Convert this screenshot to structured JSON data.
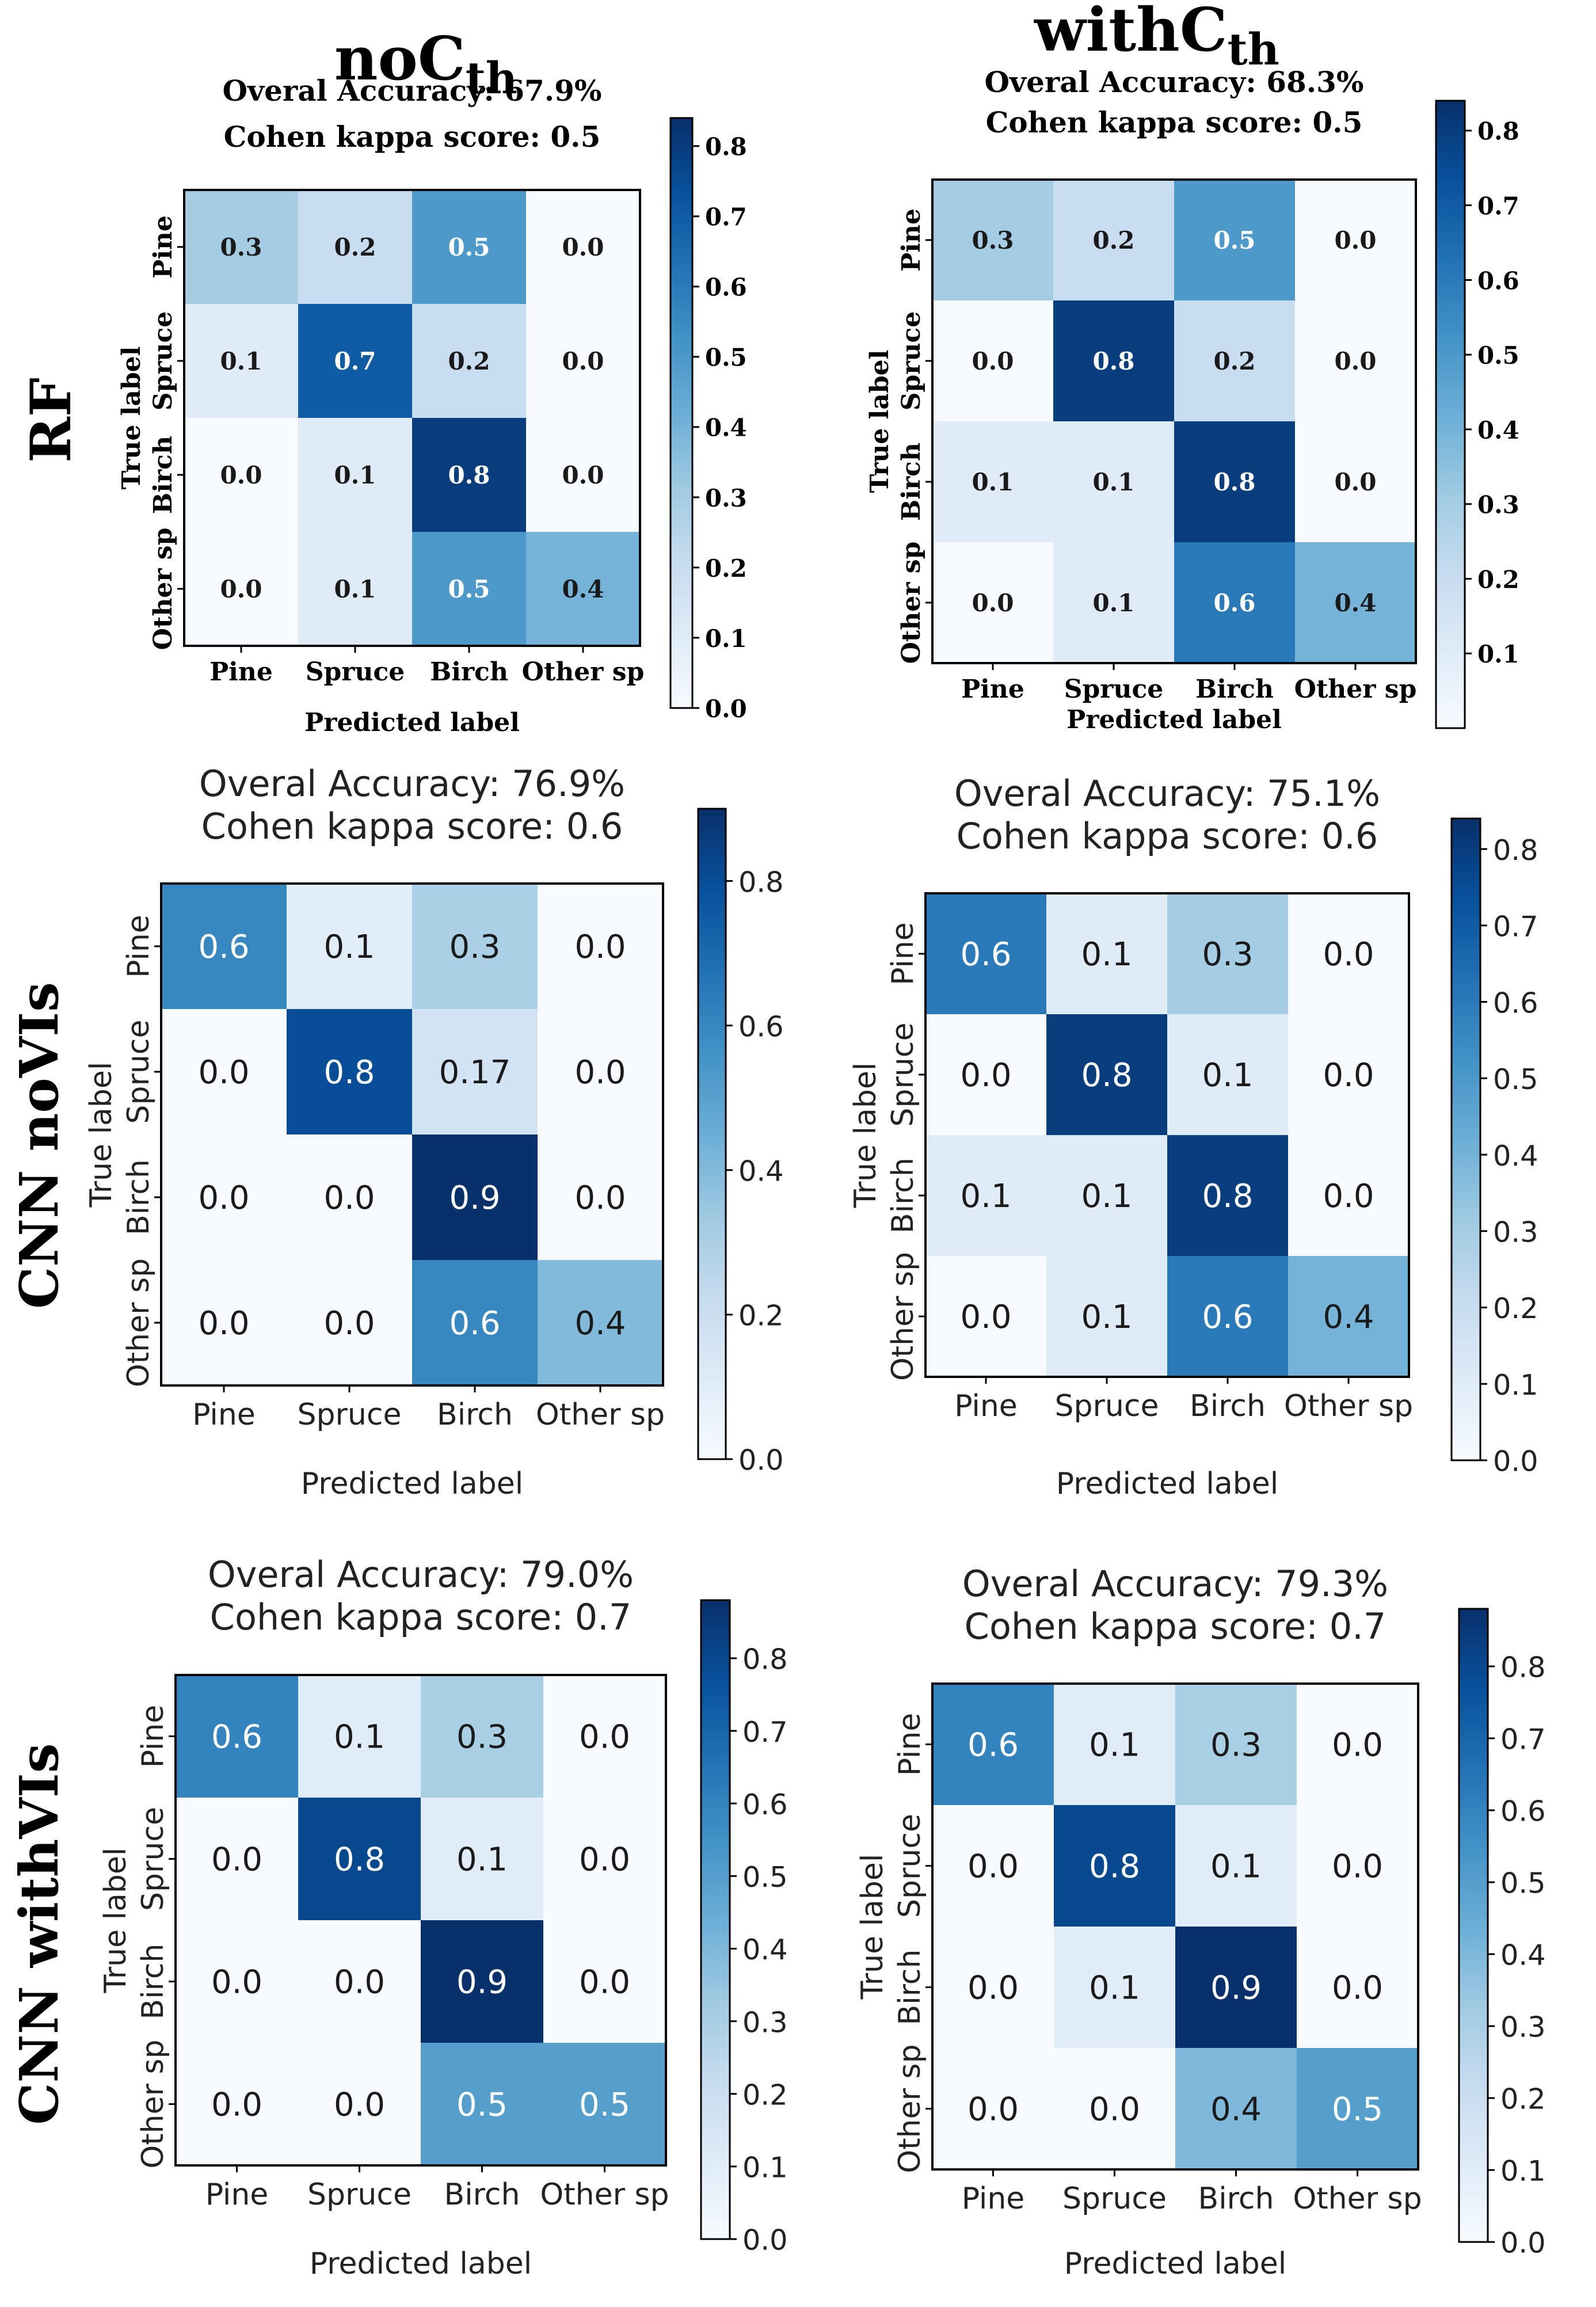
{
  "column_headers": [
    {
      "base": "noC",
      "sub": "th"
    },
    {
      "base": "withC",
      "sub": "th"
    }
  ],
  "row_headers": [
    "RF",
    "CNN noVIs",
    "CNN withVIs"
  ],
  "chart_data": [
    {
      "type": "heatmap",
      "row": "RF",
      "column": "noCth",
      "title_lines": [
        "Overal Accuracy: 67.9%",
        "Cohen kappa score: 0.5"
      ],
      "xlabel": "Predicted label",
      "ylabel": "True label",
      "x_categories": [
        "Pine",
        "Spruce",
        "Birch",
        "Other sp"
      ],
      "y_categories": [
        "Pine",
        "Spruce",
        "Birch",
        "Other sp"
      ],
      "values": [
        [
          0.3,
          0.2,
          0.5,
          0.0
        ],
        [
          0.1,
          0.7,
          0.2,
          0.0
        ],
        [
          0.0,
          0.1,
          0.8,
          0.0
        ],
        [
          0.0,
          0.1,
          0.5,
          0.4
        ]
      ],
      "cell_labels": [
        [
          "0.3",
          "0.2",
          "0.5",
          "0.0"
        ],
        [
          "0.1",
          "0.7",
          "0.2",
          "0.0"
        ],
        [
          "0.0",
          "0.1",
          "0.8",
          "0.0"
        ],
        [
          "0.0",
          "0.1",
          "0.5",
          "0.4"
        ]
      ],
      "colorbar": {
        "range": [
          0.0,
          0.84
        ],
        "ticks": [
          "0.0",
          "0.1",
          "0.2",
          "0.3",
          "0.4",
          "0.5",
          "0.6",
          "0.7",
          "0.8"
        ]
      },
      "colormap": "Blues"
    },
    {
      "type": "heatmap",
      "row": "RF",
      "column": "withCth",
      "title_lines": [
        "Overal Accuracy: 68.3%",
        "Cohen kappa score: 0.5"
      ],
      "xlabel": "Predicted label",
      "ylabel": "True label",
      "x_categories": [
        "Pine",
        "Spruce",
        "Birch",
        "Other sp"
      ],
      "y_categories": [
        "Pine",
        "Spruce",
        "Birch",
        "Other sp"
      ],
      "values": [
        [
          0.3,
          0.2,
          0.5,
          0.0
        ],
        [
          0.0,
          0.8,
          0.2,
          0.0
        ],
        [
          0.1,
          0.1,
          0.8,
          0.0
        ],
        [
          0.0,
          0.1,
          0.6,
          0.4
        ]
      ],
      "cell_labels": [
        [
          "0.3",
          "0.2",
          "0.5",
          "0.0"
        ],
        [
          "0.0",
          "0.8",
          "0.2",
          "0.0"
        ],
        [
          "0.1",
          "0.1",
          "0.8",
          "0.0"
        ],
        [
          "0.0",
          "0.1",
          "0.6",
          "0.4"
        ]
      ],
      "colorbar": {
        "range": [
          0.0,
          0.84
        ],
        "ticks": [
          "0.1",
          "0.2",
          "0.3",
          "0.4",
          "0.5",
          "0.6",
          "0.7",
          "0.8"
        ]
      },
      "colormap": "Blues"
    },
    {
      "type": "heatmap",
      "row": "CNN noVIs",
      "column": "noCth",
      "title_lines": [
        "Overal Accuracy: 76.9%",
        "Cohen kappa score: 0.6"
      ],
      "xlabel": "Predicted label",
      "ylabel": "True label",
      "x_categories": [
        "Pine",
        "Spruce",
        "Birch",
        "Other sp"
      ],
      "y_categories": [
        "Pine",
        "Spruce",
        "Birch",
        "Other sp"
      ],
      "values": [
        [
          0.6,
          0.1,
          0.3,
          0.0
        ],
        [
          0.0,
          0.8,
          0.17,
          0.0
        ],
        [
          0.0,
          0.0,
          0.9,
          0.0
        ],
        [
          0.0,
          0.0,
          0.6,
          0.4
        ]
      ],
      "cell_labels": [
        [
          "0.6",
          "0.1",
          "0.3",
          "0.0"
        ],
        [
          "0.0",
          "0.8",
          "0.17",
          "0.0"
        ],
        [
          "0.0",
          "0.0",
          "0.9",
          "0.0"
        ],
        [
          "0.0",
          "0.0",
          "0.6",
          "0.4"
        ]
      ],
      "colorbar": {
        "range": [
          0.0,
          0.9
        ],
        "ticks": [
          "0.0",
          "0.2",
          "0.4",
          "0.6",
          "0.8"
        ]
      },
      "colormap": "Blues"
    },
    {
      "type": "heatmap",
      "row": "CNN noVIs",
      "column": "withCth",
      "title_lines": [
        "Overal Accuracy: 75.1%",
        "Cohen kappa score: 0.6"
      ],
      "xlabel": "Predicted label",
      "ylabel": "True label",
      "x_categories": [
        "Pine",
        "Spruce",
        "Birch",
        "Other sp"
      ],
      "y_categories": [
        "Pine",
        "Spruce",
        "Birch",
        "Other sp"
      ],
      "values": [
        [
          0.6,
          0.1,
          0.3,
          0.0
        ],
        [
          0.0,
          0.8,
          0.1,
          0.0
        ],
        [
          0.1,
          0.1,
          0.8,
          0.0
        ],
        [
          0.0,
          0.1,
          0.6,
          0.4
        ]
      ],
      "cell_labels": [
        [
          "0.6",
          "0.1",
          "0.3",
          "0.0"
        ],
        [
          "0.0",
          "0.8",
          "0.1",
          "0.0"
        ],
        [
          "0.1",
          "0.1",
          "0.8",
          "0.0"
        ],
        [
          "0.0",
          "0.1",
          "0.6",
          "0.4"
        ]
      ],
      "colorbar": {
        "range": [
          0.0,
          0.84
        ],
        "ticks": [
          "0.0",
          "0.1",
          "0.2",
          "0.3",
          "0.4",
          "0.5",
          "0.6",
          "0.7",
          "0.8"
        ]
      },
      "colormap": "Blues"
    },
    {
      "type": "heatmap",
      "row": "CNN withVIs",
      "column": "noCth",
      "title_lines": [
        "Overal Accuracy: 79.0%",
        "Cohen kappa score: 0.7"
      ],
      "xlabel": "Predicted label",
      "ylabel": "True label",
      "x_categories": [
        "Pine",
        "Spruce",
        "Birch",
        "Other sp"
      ],
      "y_categories": [
        "Pine",
        "Spruce",
        "Birch",
        "Other sp"
      ],
      "values": [
        [
          0.6,
          0.1,
          0.3,
          0.0
        ],
        [
          0.0,
          0.8,
          0.1,
          0.0
        ],
        [
          0.0,
          0.0,
          0.9,
          0.0
        ],
        [
          0.0,
          0.0,
          0.5,
          0.5
        ]
      ],
      "cell_labels": [
        [
          "0.6",
          "0.1",
          "0.3",
          "0.0"
        ],
        [
          "0.0",
          "0.8",
          "0.1",
          "0.0"
        ],
        [
          "0.0",
          "0.0",
          "0.9",
          "0.0"
        ],
        [
          "0.0",
          "0.0",
          "0.5",
          "0.5"
        ]
      ],
      "colorbar": {
        "range": [
          0.0,
          0.88
        ],
        "ticks": [
          "0.0",
          "0.1",
          "0.2",
          "0.3",
          "0.4",
          "0.5",
          "0.6",
          "0.7",
          "0.8"
        ]
      },
      "colormap": "Blues"
    },
    {
      "type": "heatmap",
      "row": "CNN withVIs",
      "column": "withCth",
      "title_lines": [
        "Overal Accuracy: 79.3%",
        "Cohen kappa score: 0.7"
      ],
      "xlabel": "Predicted label",
      "ylabel": "True label",
      "x_categories": [
        "Pine",
        "Spruce",
        "Birch",
        "Other sp"
      ],
      "y_categories": [
        "Pine",
        "Spruce",
        "Birch",
        "Other sp"
      ],
      "values": [
        [
          0.6,
          0.1,
          0.3,
          0.0
        ],
        [
          0.0,
          0.8,
          0.1,
          0.0
        ],
        [
          0.0,
          0.1,
          0.9,
          0.0
        ],
        [
          0.0,
          0.0,
          0.4,
          0.5
        ]
      ],
      "cell_labels": [
        [
          "0.6",
          "0.1",
          "0.3",
          "0.0"
        ],
        [
          "0.0",
          "0.8",
          "0.1",
          "0.0"
        ],
        [
          "0.0",
          "0.1",
          "0.9",
          "0.0"
        ],
        [
          "0.0",
          "0.0",
          "0.4",
          "0.5"
        ]
      ],
      "colorbar": {
        "range": [
          0.0,
          0.88
        ],
        "ticks": [
          "0.0",
          "0.1",
          "0.2",
          "0.3",
          "0.4",
          "0.5",
          "0.6",
          "0.7",
          "0.8"
        ]
      },
      "colormap": "Blues"
    }
  ]
}
